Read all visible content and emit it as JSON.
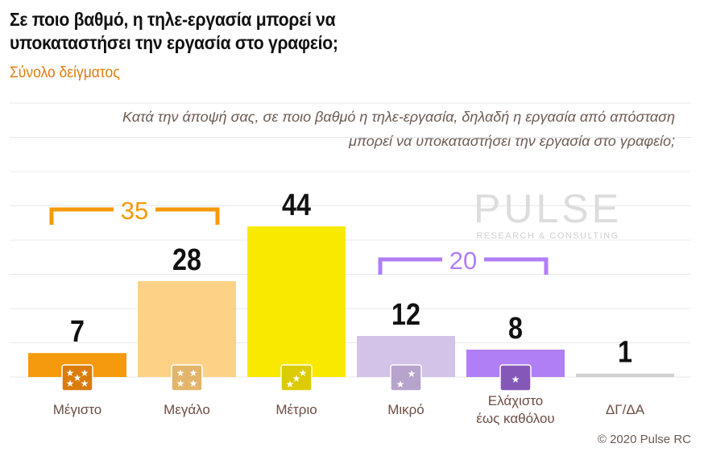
{
  "title_line1": "Σε ποιο βαθμό, η τηλε-εργασία μπορεί να",
  "title_line2": "υποκαταστήσει την εργασία στο γραφείο;",
  "subtitle": "Σύνολο δείγματος",
  "question_line1": "Κατά την άποψή σας, σε ποιο βαθμό η τηλε-εργασία, δηλαδή η εργασία από απόσταση",
  "question_line2": "μπορεί να υποκαταστήσει την εργασία στο γραφείο;",
  "copyright": "© 2020 Pulse RC",
  "watermark": "PULSE RESEARCH & CONSULTING",
  "chart_data": {
    "type": "bar",
    "categories": [
      "Μέγιστο",
      "Μεγάλο",
      "Μέτριο",
      "Μικρό",
      "Ελάχιστο έως καθόλου",
      "ΔΓ/ΔΑ"
    ],
    "category_lines": [
      [
        "Μέγιστο"
      ],
      [
        "Μεγάλο"
      ],
      [
        "Μέτριο"
      ],
      [
        "Μικρό"
      ],
      [
        "Ελάχιστο",
        "έως καθόλου"
      ],
      [
        "ΔΓ/ΔΑ"
      ]
    ],
    "values": [
      7,
      28,
      44,
      12,
      8,
      1
    ],
    "colors": [
      "#f59a0c",
      "#fdd186",
      "#f9e900",
      "#d3c3e8",
      "#b07ff5",
      "#d0d0d0"
    ],
    "icon_colors": [
      "#d97c0a",
      "#e3b56a",
      "#dccb00",
      "#b6a4cc",
      "#8558b8",
      null
    ],
    "stars": [
      5,
      4,
      3,
      2,
      1,
      0
    ],
    "ylim": [
      0,
      80
    ],
    "grid": true,
    "groups": [
      {
        "label": "35",
        "from": 0,
        "to": 1,
        "color": "#f59a0c"
      },
      {
        "label": "20",
        "from": 3,
        "to": 4,
        "color": "#b07ff5"
      }
    ]
  }
}
